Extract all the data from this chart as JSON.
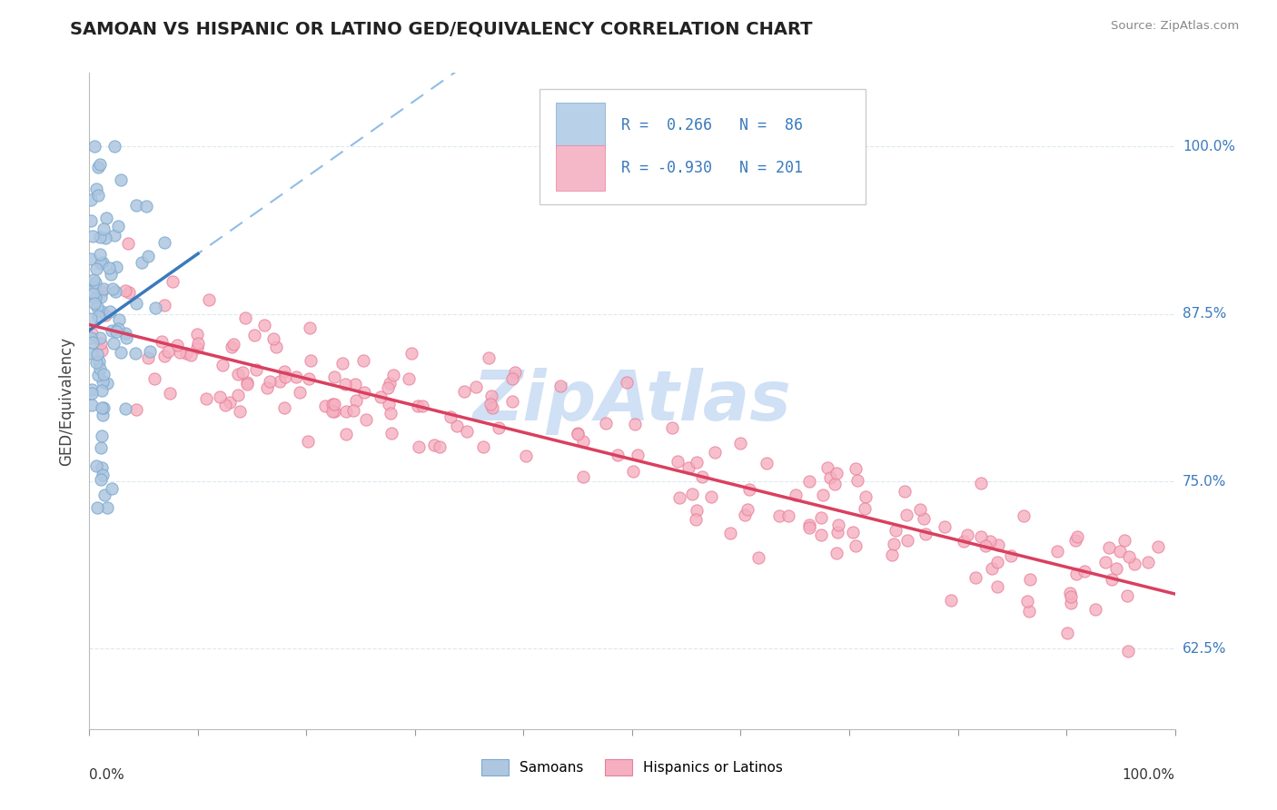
{
  "title": "SAMOAN VS HISPANIC OR LATINO GED/EQUIVALENCY CORRELATION CHART",
  "source_text": "Source: ZipAtlas.com",
  "ylabel": "GED/Equivalency",
  "ytick_labels": [
    "62.5%",
    "75.0%",
    "87.5%",
    "100.0%"
  ],
  "ytick_values": [
    0.625,
    0.75,
    0.875,
    1.0
  ],
  "xmin": 0.0,
  "xmax": 1.0,
  "ymin": 0.565,
  "ymax": 1.055,
  "samoans_color": "#aec6e0",
  "hispanics_color": "#f5afc0",
  "samoans_edge": "#7aaacf",
  "hispanics_edge": "#e8809a",
  "trend_blue_solid_color": "#3a7abd",
  "trend_pink_solid_color": "#d94060",
  "trend_dash_color": "#90bce8",
  "background_color": "#ffffff",
  "grid_color": "#dce8f0",
  "watermark_color": "#d0e0f5",
  "legend_box_blue": "#b8d0e8",
  "legend_box_pink": "#f5b8c8",
  "legend_text_color": "#3a7abd",
  "title_color": "#222222",
  "source_color": "#888888",
  "ylabel_color": "#444444",
  "yaxis_label_color": "#3a7abd",
  "xaxis_label_color": "#333333"
}
